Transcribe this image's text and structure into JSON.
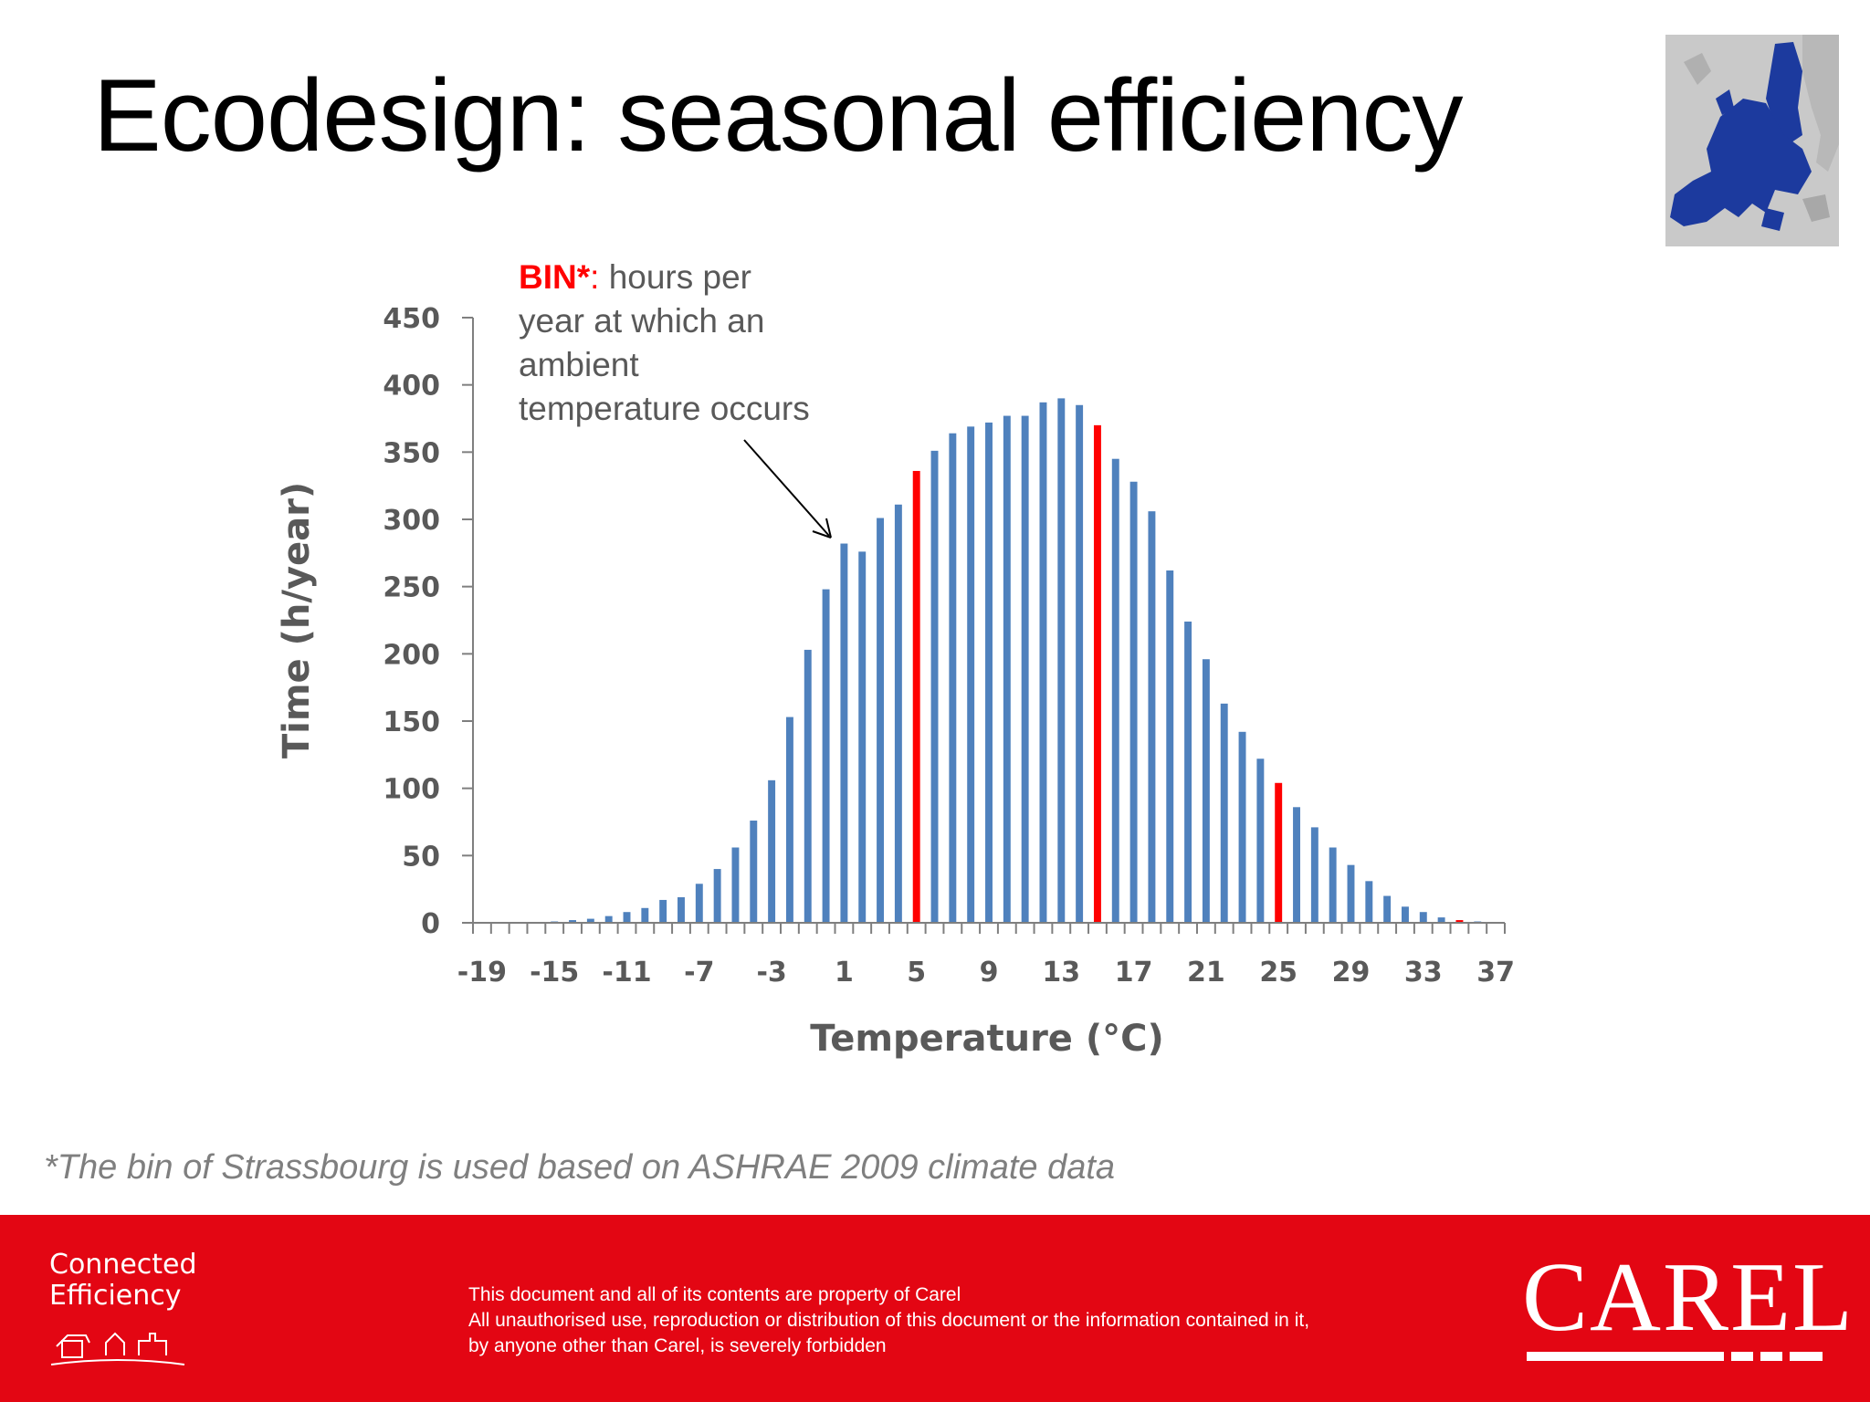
{
  "slide": {
    "title": "Ecodesign: seasonal efficiency",
    "footnote": "*The bin of Strassbourg is used based on ASHRAE 2009 climate data"
  },
  "annotation": {
    "bin_label": "BIN*",
    "colon": ":",
    "lines": [
      "hours per",
      "year at which an",
      "ambient",
      "temperature occurs"
    ]
  },
  "chart_data": {
    "type": "bar",
    "title": "",
    "xlabel": "Temperature (°C)",
    "ylabel": "Time (h/year)",
    "ylim": [
      0,
      450
    ],
    "yticks": [
      0,
      50,
      100,
      150,
      200,
      250,
      300,
      350,
      400,
      450
    ],
    "xtick_labels": [
      "-19",
      "-15",
      "-11",
      "-7",
      "-3",
      "1",
      "5",
      "9",
      "13",
      "17",
      "21",
      "25",
      "29",
      "33",
      "37"
    ],
    "categories": [
      -19,
      -18,
      -17,
      -16,
      -15,
      -14,
      -13,
      -12,
      -11,
      -10,
      -9,
      -8,
      -7,
      -6,
      -5,
      -4,
      -3,
      -2,
      -1,
      0,
      1,
      2,
      3,
      4,
      5,
      6,
      7,
      8,
      9,
      10,
      11,
      12,
      13,
      14,
      15,
      16,
      17,
      18,
      19,
      20,
      21,
      22,
      23,
      24,
      25,
      26,
      27,
      28,
      29,
      30,
      31,
      32,
      33,
      34,
      35,
      36,
      37
    ],
    "values": [
      0,
      0,
      0,
      0,
      1,
      2,
      3,
      5,
      8,
      11,
      17,
      19,
      29,
      40,
      56,
      76,
      106,
      153,
      203,
      248,
      282,
      276,
      301,
      311,
      336,
      351,
      364,
      369,
      372,
      377,
      377,
      387,
      390,
      385,
      370,
      345,
      328,
      306,
      262,
      224,
      196,
      163,
      142,
      122,
      104,
      86,
      71,
      56,
      43,
      31,
      20,
      12,
      8,
      4,
      2,
      1,
      0
    ],
    "highlighted": [
      5,
      15,
      25,
      35
    ],
    "colors": {
      "bar": "#4f81bd",
      "highlight": "#ff0000",
      "axis": "#7f7f7f",
      "tick_text": "#595959"
    }
  },
  "footer": {
    "tagline_line1": "Connected",
    "tagline_line2": "Efficiency",
    "disclaimer_1": "This document and all of its contents are property of Carel",
    "disclaimer_2": "All unauthorised use, reproduction or distribution of this document or the information contained in it,",
    "disclaimer_3": "by anyone other than Carel, is severely forbidden",
    "brand": "CAREL",
    "color": "#e30613"
  }
}
